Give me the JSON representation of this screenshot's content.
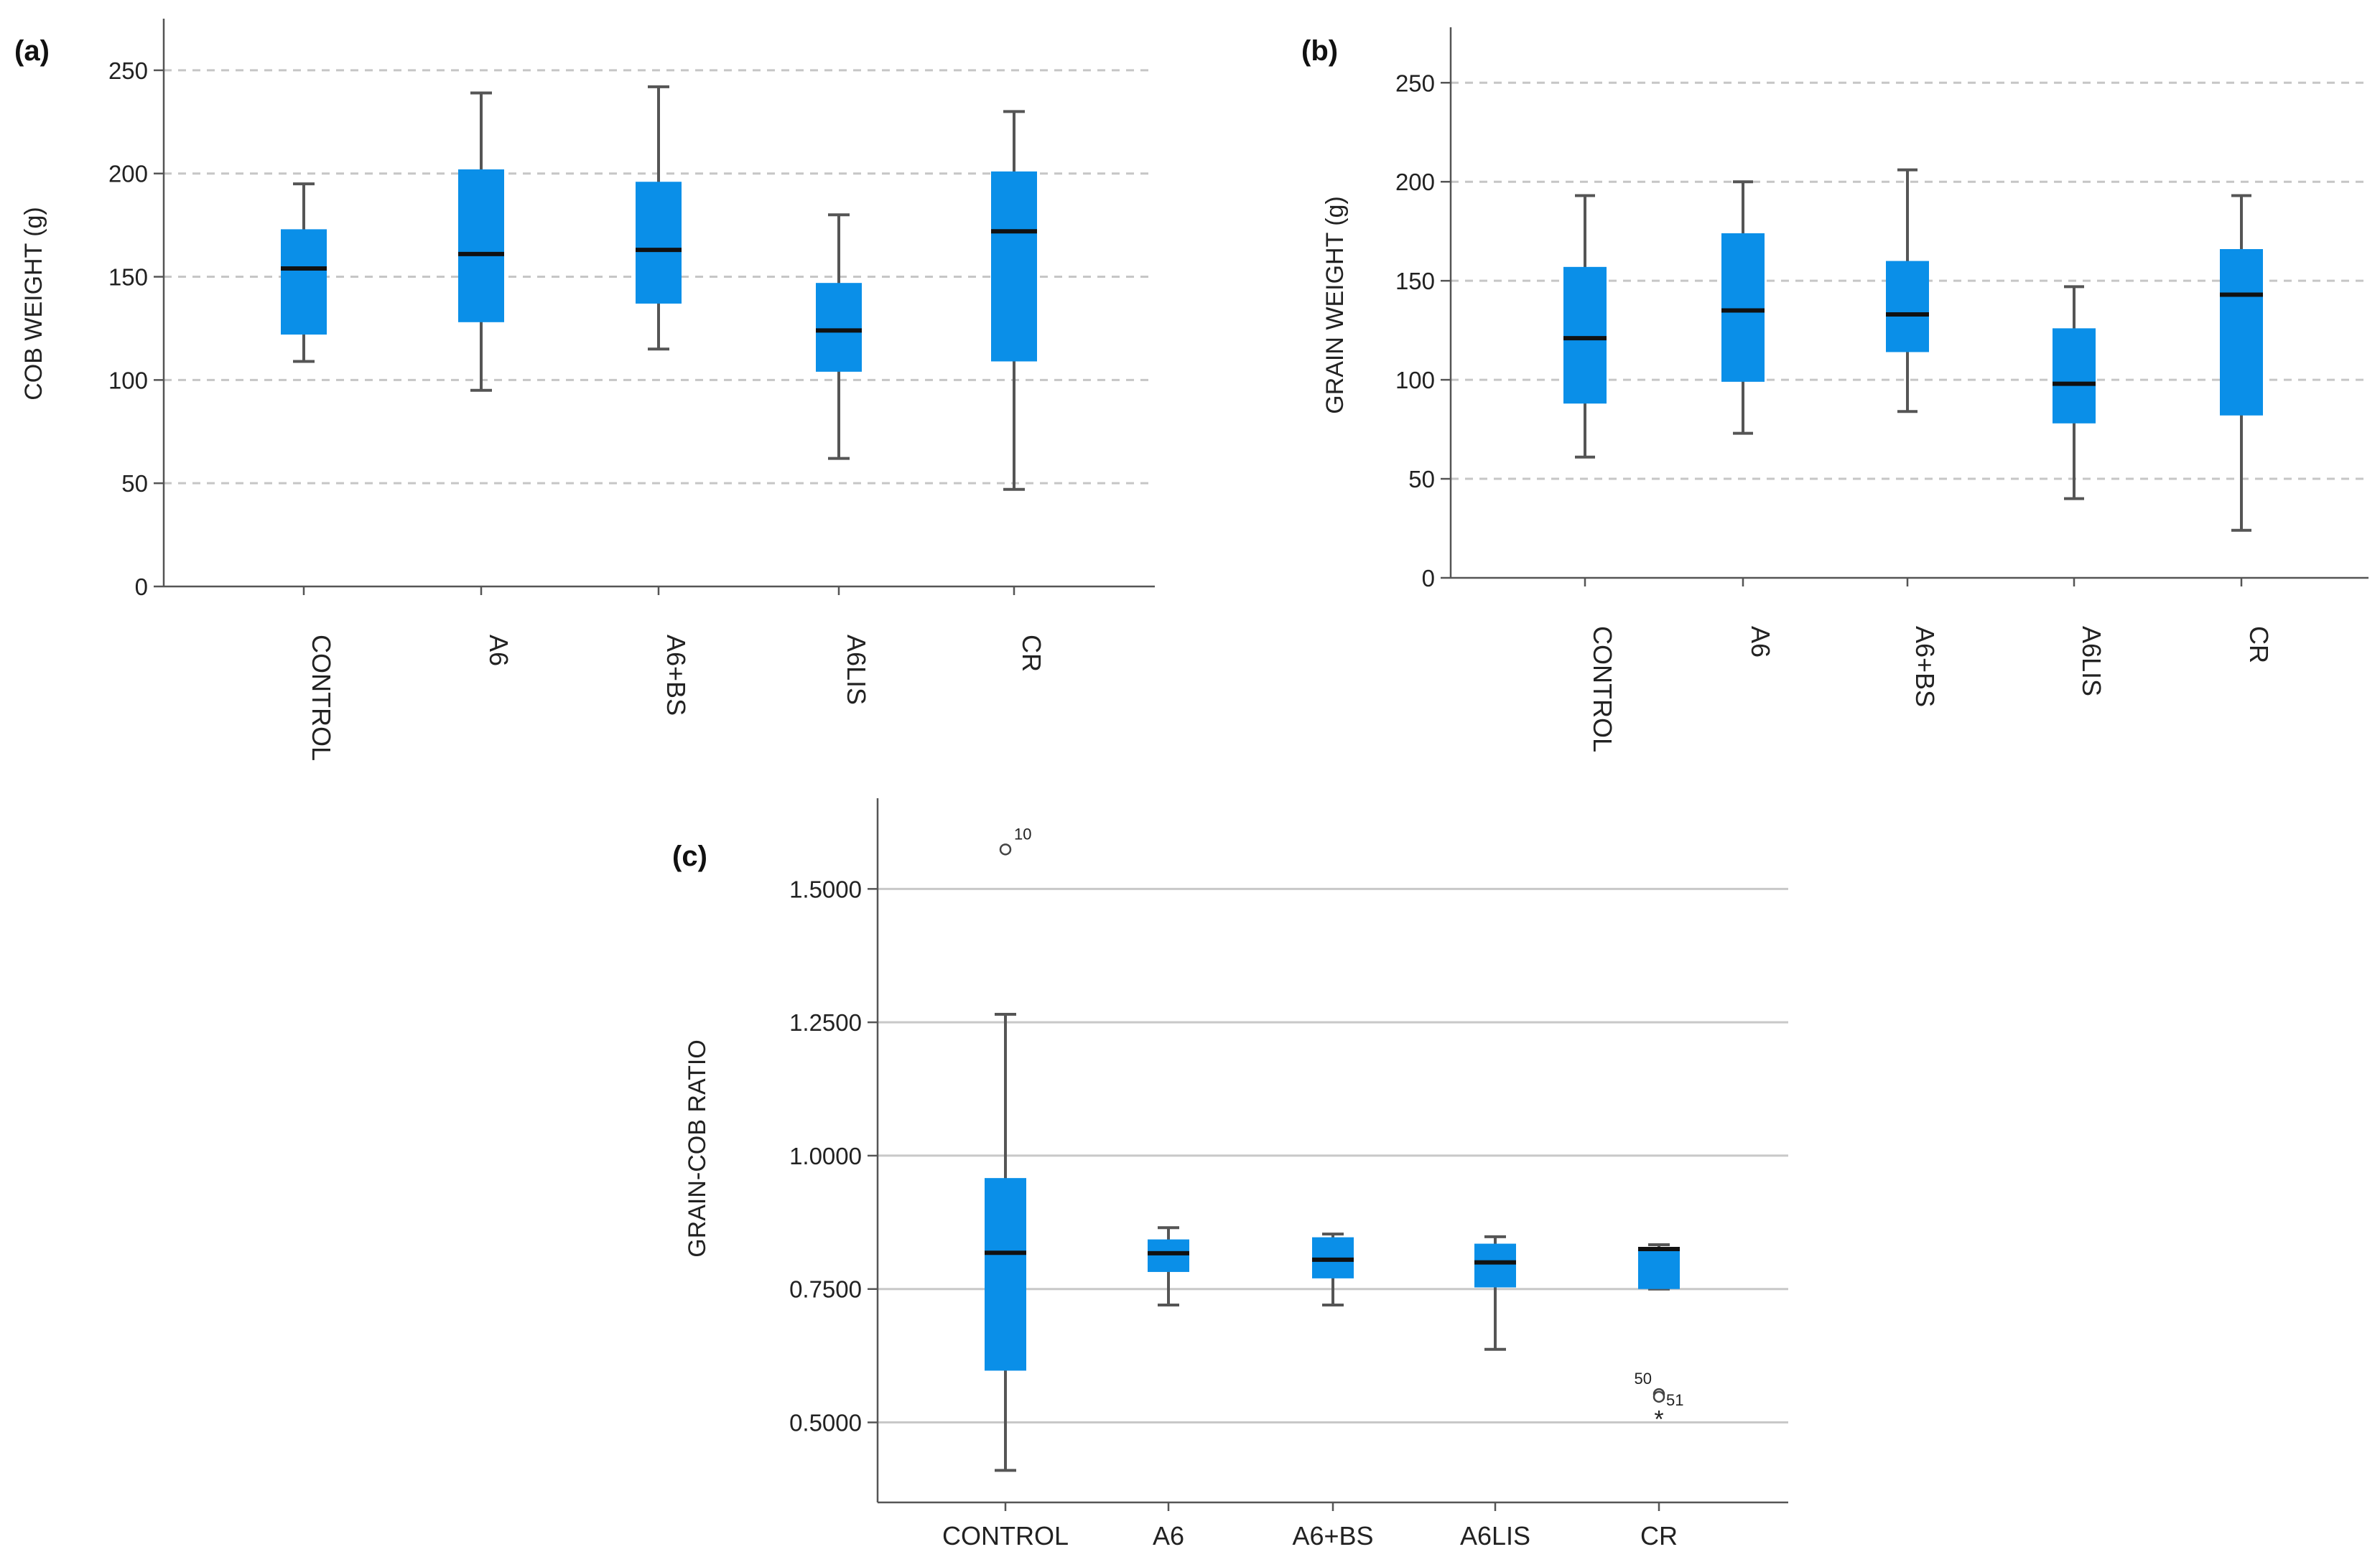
{
  "chart_data": [
    {
      "id": "a",
      "panel_label": "(a)",
      "type": "boxplot",
      "ylabel": "COB WEIGHT (g)",
      "ylim": [
        0,
        275
      ],
      "yticks": [
        0,
        50,
        100,
        150,
        200,
        250
      ],
      "ytick_labels": [
        "0",
        "50",
        "100",
        "150",
        "200",
        "250"
      ],
      "grid": "dashed",
      "xlabel_rotation": "vertical",
      "categories": [
        "CONTROL",
        "A6",
        "A6+BS",
        "A6LIS",
        "CR"
      ],
      "boxes": [
        {
          "min": 109,
          "q1": 122,
          "median": 154,
          "q3": 173,
          "max": 195
        },
        {
          "min": 95,
          "q1": 128,
          "median": 161,
          "q3": 202,
          "max": 239
        },
        {
          "min": 115,
          "q1": 137,
          "median": 163,
          "q3": 196,
          "max": 242
        },
        {
          "min": 62,
          "q1": 104,
          "median": 124,
          "q3": 147,
          "max": 180
        },
        {
          "min": 47,
          "q1": 109,
          "median": 172,
          "q3": 201,
          "max": 230
        }
      ],
      "outliers": []
    },
    {
      "id": "b",
      "panel_label": "(b)",
      "type": "boxplot",
      "ylabel": "GRAIN WEIGHT (g)",
      "ylim": [
        0,
        278
      ],
      "yticks": [
        0,
        50,
        100,
        150,
        200,
        250
      ],
      "ytick_labels": [
        "0",
        "50",
        "100",
        "150",
        "200",
        "250"
      ],
      "grid": "dashed",
      "xlabel_rotation": "vertical",
      "categories": [
        "CONTROL",
        "A6",
        "A6+BS",
        "A6LIS",
        "CR"
      ],
      "boxes": [
        {
          "min": 61,
          "q1": 88,
          "median": 121,
          "q3": 157,
          "max": 193
        },
        {
          "min": 73,
          "q1": 99,
          "median": 135,
          "q3": 174,
          "max": 200
        },
        {
          "min": 84,
          "q1": 114,
          "median": 133,
          "q3": 160,
          "max": 206
        },
        {
          "min": 40,
          "q1": 78,
          "median": 98,
          "q3": 126,
          "max": 147
        },
        {
          "min": 24,
          "q1": 82,
          "median": 143,
          "q3": 166,
          "max": 193
        }
      ],
      "outliers": []
    },
    {
      "id": "c",
      "panel_label": "(c)",
      "type": "boxplot",
      "ylabel": "GRAIN-COB RATIO",
      "ylim": [
        0.35,
        1.67
      ],
      "yticks": [
        0.5,
        0.75,
        1.0,
        1.25,
        1.5
      ],
      "ytick_labels": [
        "0.5000",
        "0.7500",
        "1.0000",
        "1.2500",
        "1.5000"
      ],
      "grid": "solid",
      "xlabel_rotation": "horizontal",
      "categories": [
        "CONTROL",
        "A6",
        "A6+BS",
        "A6LIS",
        "CR"
      ],
      "boxes": [
        {
          "min": 0.41,
          "q1": 0.597,
          "median": 0.818,
          "q3": 0.958,
          "max": 1.265
        },
        {
          "min": 0.72,
          "q1": 0.782,
          "median": 0.817,
          "q3": 0.843,
          "max": 0.865
        },
        {
          "min": 0.72,
          "q1": 0.77,
          "median": 0.805,
          "q3": 0.847,
          "max": 0.853
        },
        {
          "min": 0.637,
          "q1": 0.753,
          "median": 0.8,
          "q3": 0.835,
          "max": 0.848
        },
        {
          "min": 0.75,
          "q1": 0.75,
          "median": 0.825,
          "q3": 0.828,
          "max": 0.833
        }
      ],
      "outliers": [
        {
          "category": "CONTROL",
          "value": 1.574,
          "marker": "circle",
          "label": "10"
        },
        {
          "category": "CR",
          "value": 0.553,
          "marker": "circle",
          "label": "50"
        },
        {
          "category": "CR",
          "value": 0.548,
          "marker": "circle",
          "label": "51"
        },
        {
          "category": "CR",
          "value": 0.512,
          "marker": "star",
          "label": "*"
        }
      ]
    }
  ]
}
